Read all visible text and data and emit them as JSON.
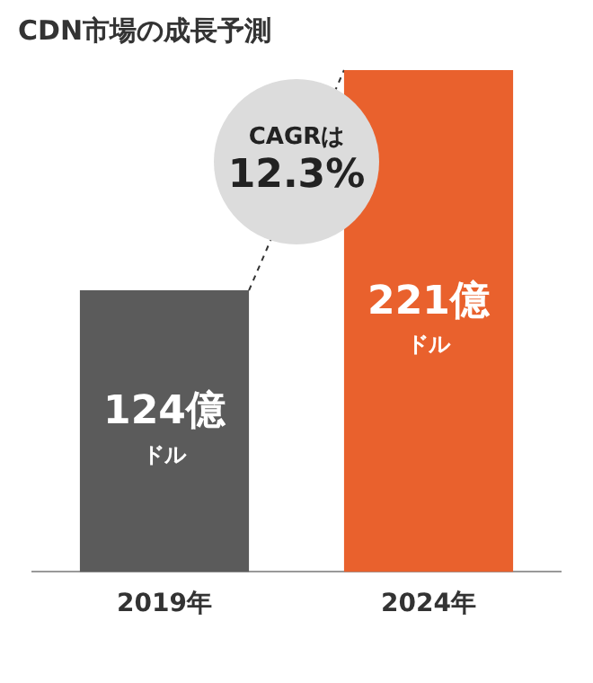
{
  "chart_data": {
    "type": "bar",
    "title": "CDN市場の成長予測",
    "categories": [
      "2019年",
      "2024年"
    ],
    "values": [
      124,
      221
    ],
    "colors": [
      "#5b5b5b",
      "#e9612d"
    ],
    "value_labels": [
      "124億ドル",
      "221億ドル"
    ],
    "annotations": [
      "CAGRは\n12.3%"
    ],
    "legend": false,
    "grid": false
  }
}
